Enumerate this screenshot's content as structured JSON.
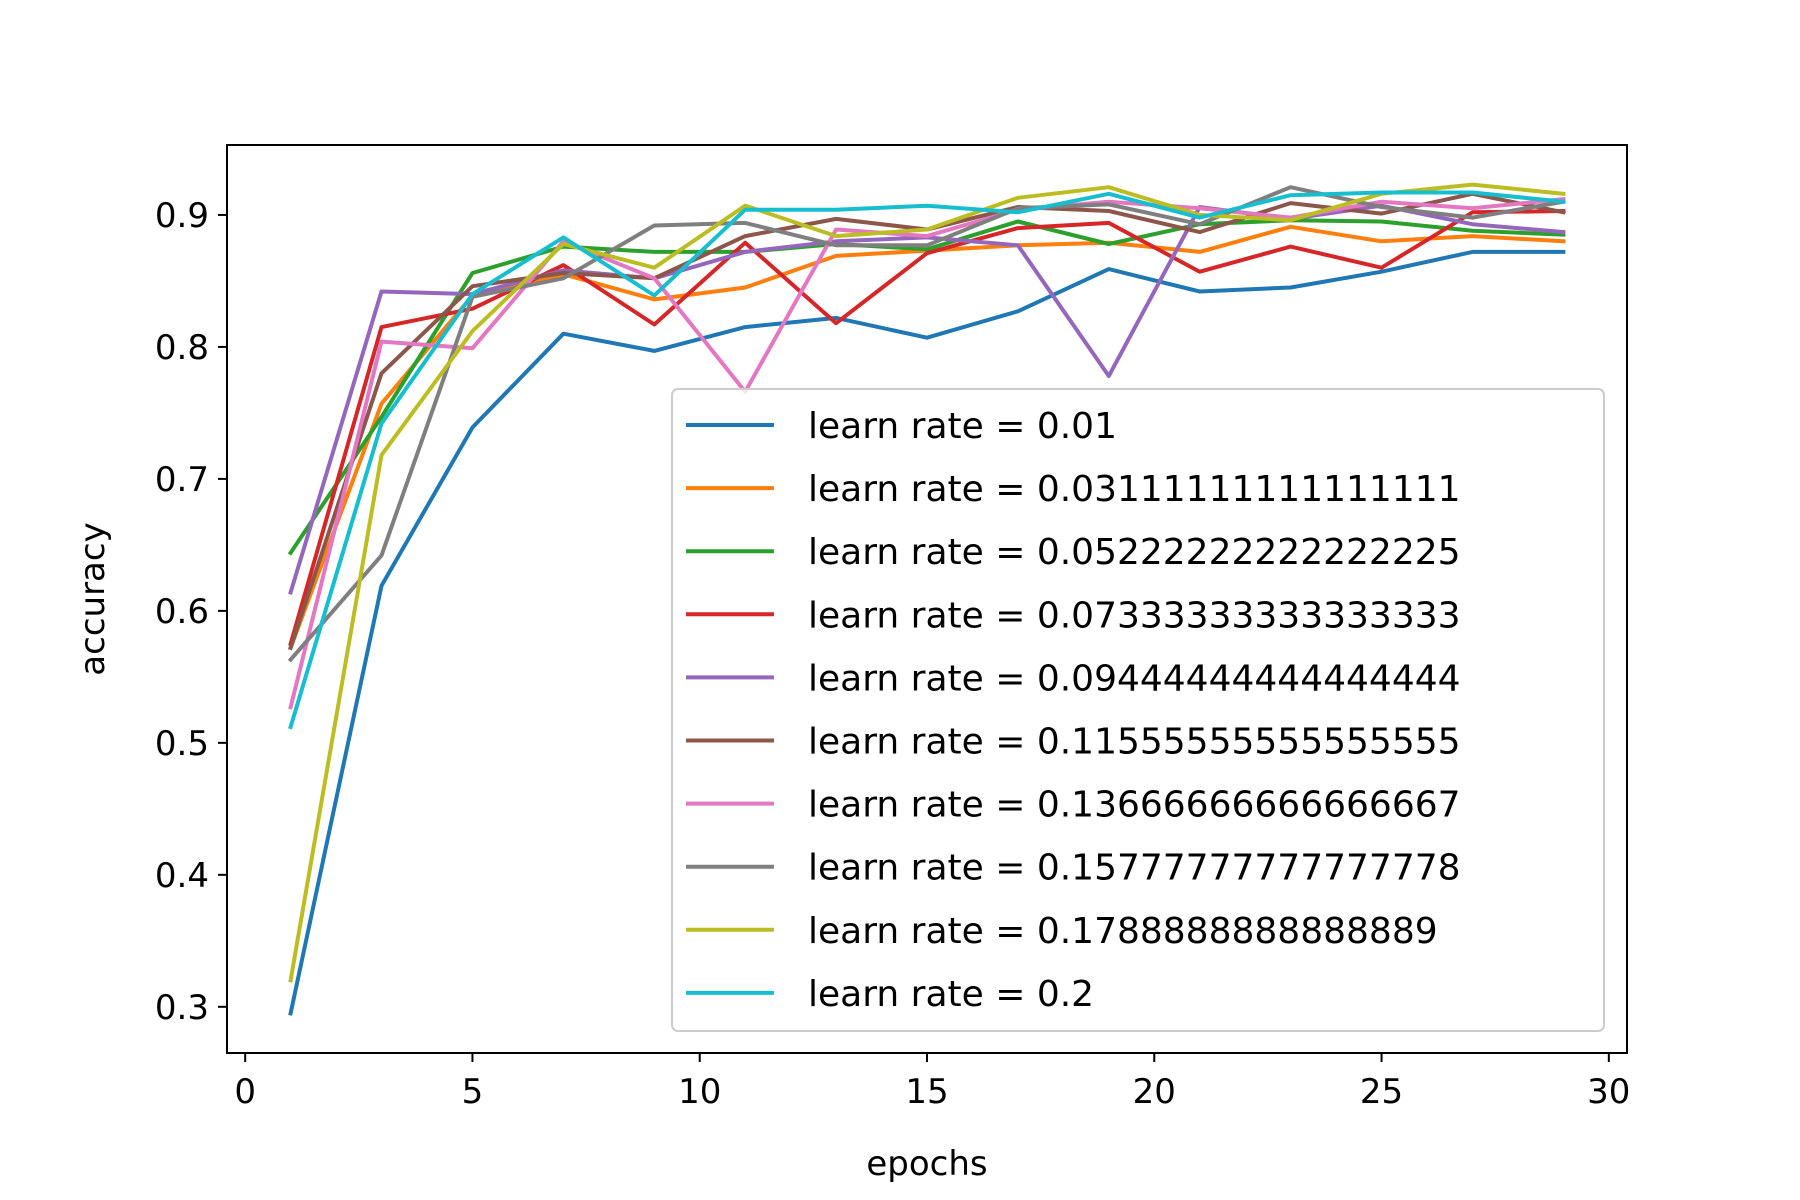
{
  "chart_data": {
    "type": "line",
    "title": "",
    "xlabel": "epochs",
    "ylabel": "accuracy",
    "xlim": [
      -0.4,
      30.4
    ],
    "ylim": [
      0.265,
      0.953
    ],
    "xticks": [
      0,
      5,
      10,
      15,
      20,
      25,
      30
    ],
    "yticks": [
      0.3,
      0.4,
      0.5,
      0.6,
      0.7,
      0.8,
      0.9
    ],
    "grid": false,
    "legend_position": "bottom-right",
    "x": [
      1,
      3,
      5,
      7,
      9,
      11,
      13,
      15,
      17,
      19,
      21,
      23,
      25,
      27,
      29
    ],
    "series": [
      {
        "name": "learn rate = 0.01",
        "color": "#1f77b4",
        "values": [
          0.295,
          0.619,
          0.739,
          0.81,
          0.797,
          0.815,
          0.822,
          0.807,
          0.827,
          0.859,
          0.842,
          0.845,
          0.857,
          0.872,
          0.872
        ]
      },
      {
        "name": "learn rate = 0.03111111111111111",
        "color": "#ff7f0e",
        "values": [
          0.572,
          0.757,
          0.839,
          0.855,
          0.836,
          0.845,
          0.869,
          0.873,
          0.877,
          0.879,
          0.872,
          0.891,
          0.88,
          0.884,
          0.88
        ]
      },
      {
        "name": "learn rate = 0.05222222222222225",
        "color": "#2ca02c",
        "values": [
          0.644,
          0.747,
          0.856,
          0.876,
          0.872,
          0.872,
          0.878,
          0.874,
          0.895,
          0.878,
          0.893,
          0.896,
          0.895,
          0.888,
          0.885
        ]
      },
      {
        "name": "learn rate = 0.07333333333333333",
        "color": "#d62728",
        "values": [
          0.575,
          0.815,
          0.829,
          0.862,
          0.817,
          0.879,
          0.818,
          0.871,
          0.89,
          0.894,
          0.857,
          0.876,
          0.86,
          0.902,
          0.903
        ]
      },
      {
        "name": "learn rate = 0.09444444444444444",
        "color": "#9467bd",
        "values": [
          0.614,
          0.842,
          0.84,
          0.858,
          0.852,
          0.872,
          0.88,
          0.883,
          0.877,
          0.778,
          0.906,
          0.897,
          0.907,
          0.893,
          0.887
        ]
      },
      {
        "name": "learn rate = 0.11555555555555555",
        "color": "#8c564b",
        "values": [
          0.572,
          0.78,
          0.846,
          0.856,
          0.852,
          0.884,
          0.897,
          0.889,
          0.906,
          0.903,
          0.887,
          0.909,
          0.901,
          0.916,
          0.902
        ]
      },
      {
        "name": "learn rate = 0.13666666666666667",
        "color": "#e377c2",
        "values": [
          0.527,
          0.804,
          0.799,
          0.88,
          0.852,
          0.766,
          0.889,
          0.884,
          0.904,
          0.91,
          0.905,
          0.898,
          0.91,
          0.905,
          0.912
        ]
      },
      {
        "name": "learn rate = 0.15777777777777778",
        "color": "#7f7f7f",
        "values": [
          0.563,
          0.642,
          0.838,
          0.852,
          0.892,
          0.894,
          0.877,
          0.877,
          0.905,
          0.908,
          0.893,
          0.921,
          0.906,
          0.898,
          0.91
        ]
      },
      {
        "name": "learn rate = 0.1788888888888889",
        "color": "#bcbd22",
        "values": [
          0.32,
          0.718,
          0.812,
          0.878,
          0.86,
          0.907,
          0.884,
          0.889,
          0.913,
          0.921,
          0.9,
          0.896,
          0.916,
          0.923,
          0.916
        ]
      },
      {
        "name": "learn rate = 0.2",
        "color": "#17becf",
        "values": [
          0.512,
          0.742,
          0.84,
          0.883,
          0.839,
          0.904,
          0.904,
          0.907,
          0.902,
          0.916,
          0.898,
          0.915,
          0.917,
          0.917,
          0.91
        ]
      }
    ]
  }
}
